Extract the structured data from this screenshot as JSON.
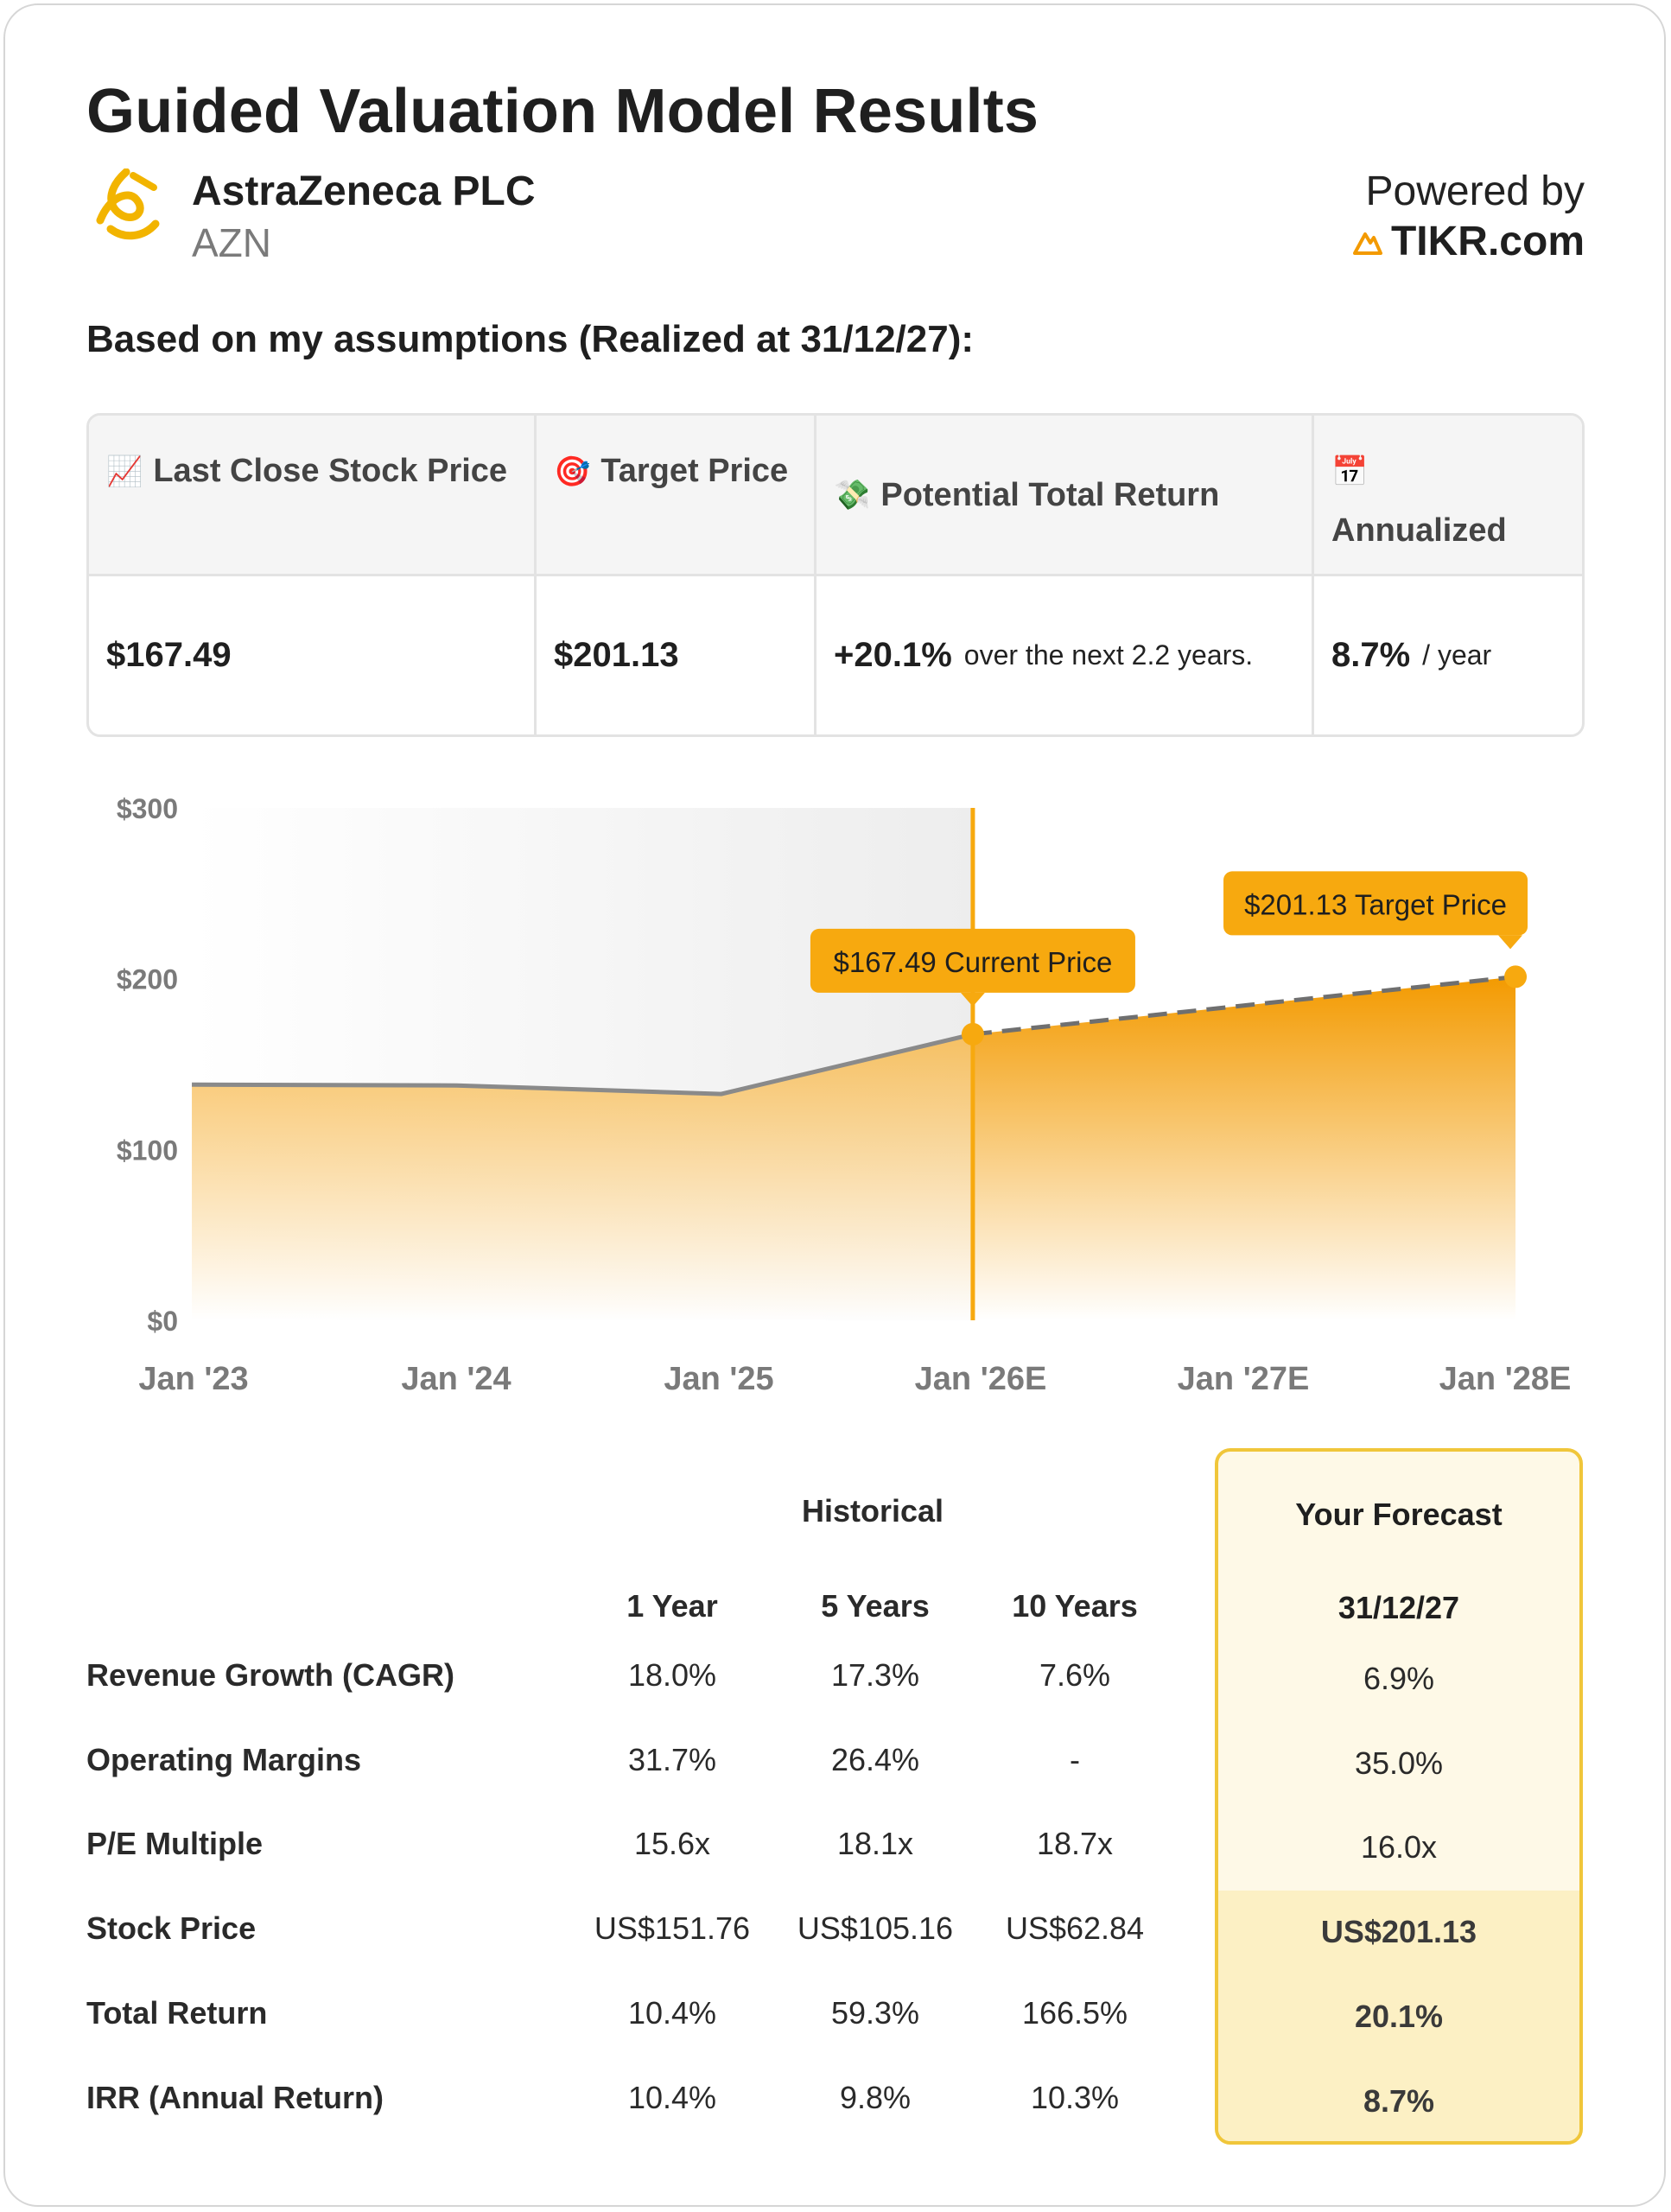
{
  "title": "Guided Valuation Model Results",
  "company": {
    "name": "AstraZeneca PLC",
    "ticker": "AZN",
    "logo_icon": "astrazeneca-logo-icon"
  },
  "powered": {
    "label": "Powered by",
    "brand": "TIKR.com",
    "brand_icon": "tikr-mountain-icon"
  },
  "subtitle": "Based on my assumptions (Realized at 31/12/27):",
  "summary": {
    "headers": [
      {
        "icon": "📈",
        "icon_name": "chart-up-icon",
        "label": "Last Close Stock Price"
      },
      {
        "icon": "🎯",
        "icon_name": "target-icon",
        "label": "Target Price"
      },
      {
        "icon": "💸",
        "icon_name": "money-icon",
        "label": "Potential Total Return"
      },
      {
        "icon": "📅",
        "icon_name": "calendar-icon",
        "label": "Annualized"
      }
    ],
    "last_close": "$167.49",
    "target": "$201.13",
    "total_return": "+20.1%",
    "total_return_note": "over the next 2.2 years.",
    "annualized": "8.7%",
    "annualized_note": "/ year"
  },
  "colors": {
    "accent": "#f7a90f",
    "accent_dark": "#f39a00",
    "line": "#8a8a8a"
  },
  "chart_data": {
    "type": "area",
    "x": [
      2023.0,
      2024.0,
      2025.0,
      2025.95,
      2028.0
    ],
    "values": [
      138,
      137.5,
      132.5,
      167.49,
      201.13
    ],
    "forecast_start_index": 3,
    "xticks": [
      2023,
      2024,
      2025,
      2026,
      2027,
      2028
    ],
    "xtick_labels": [
      "Jan '23",
      "Jan '24",
      "Jan '25",
      "Jan '26E",
      "Jan '27E",
      "Jan '28E"
    ],
    "yticks": [
      0,
      100,
      200,
      300
    ],
    "ytick_labels": [
      "$0",
      "$100",
      "$200",
      "$300"
    ],
    "ylim": [
      0,
      300
    ],
    "xlim": [
      2023.15,
      2028.15
    ],
    "annotations": [
      {
        "label": "$167.49 Current Price",
        "x": 2025.95,
        "y": 167.49
      },
      {
        "label": "$201.13 Target Price",
        "x": 2028.0,
        "y": 201.13
      }
    ]
  },
  "table": {
    "historical_title": "Historical",
    "columns": [
      "1 Year",
      "5 Years",
      "10 Years"
    ],
    "forecast_title": "Your Forecast",
    "forecast_date": "31/12/27",
    "rows": [
      {
        "label": "Revenue Growth (CAGR)",
        "values": [
          "18.0%",
          "17.3%",
          "7.6%"
        ],
        "forecast": "6.9%"
      },
      {
        "label": "Operating Margins",
        "values": [
          "31.7%",
          "26.4%",
          "-"
        ],
        "forecast": "35.0%"
      },
      {
        "label": "P/E Multiple",
        "values": [
          "15.6x",
          "18.1x",
          "18.7x"
        ],
        "forecast": "16.0x"
      },
      {
        "label": "Stock Price",
        "values": [
          "US$151.76",
          "US$105.16",
          "US$62.84"
        ],
        "forecast": "US$201.13"
      },
      {
        "label": "Total Return",
        "values": [
          "10.4%",
          "59.3%",
          "166.5%"
        ],
        "forecast": "20.1%"
      },
      {
        "label": "IRR (Annual Return)",
        "values": [
          "10.4%",
          "9.8%",
          "10.3%"
        ],
        "forecast": "8.7%"
      }
    ]
  }
}
